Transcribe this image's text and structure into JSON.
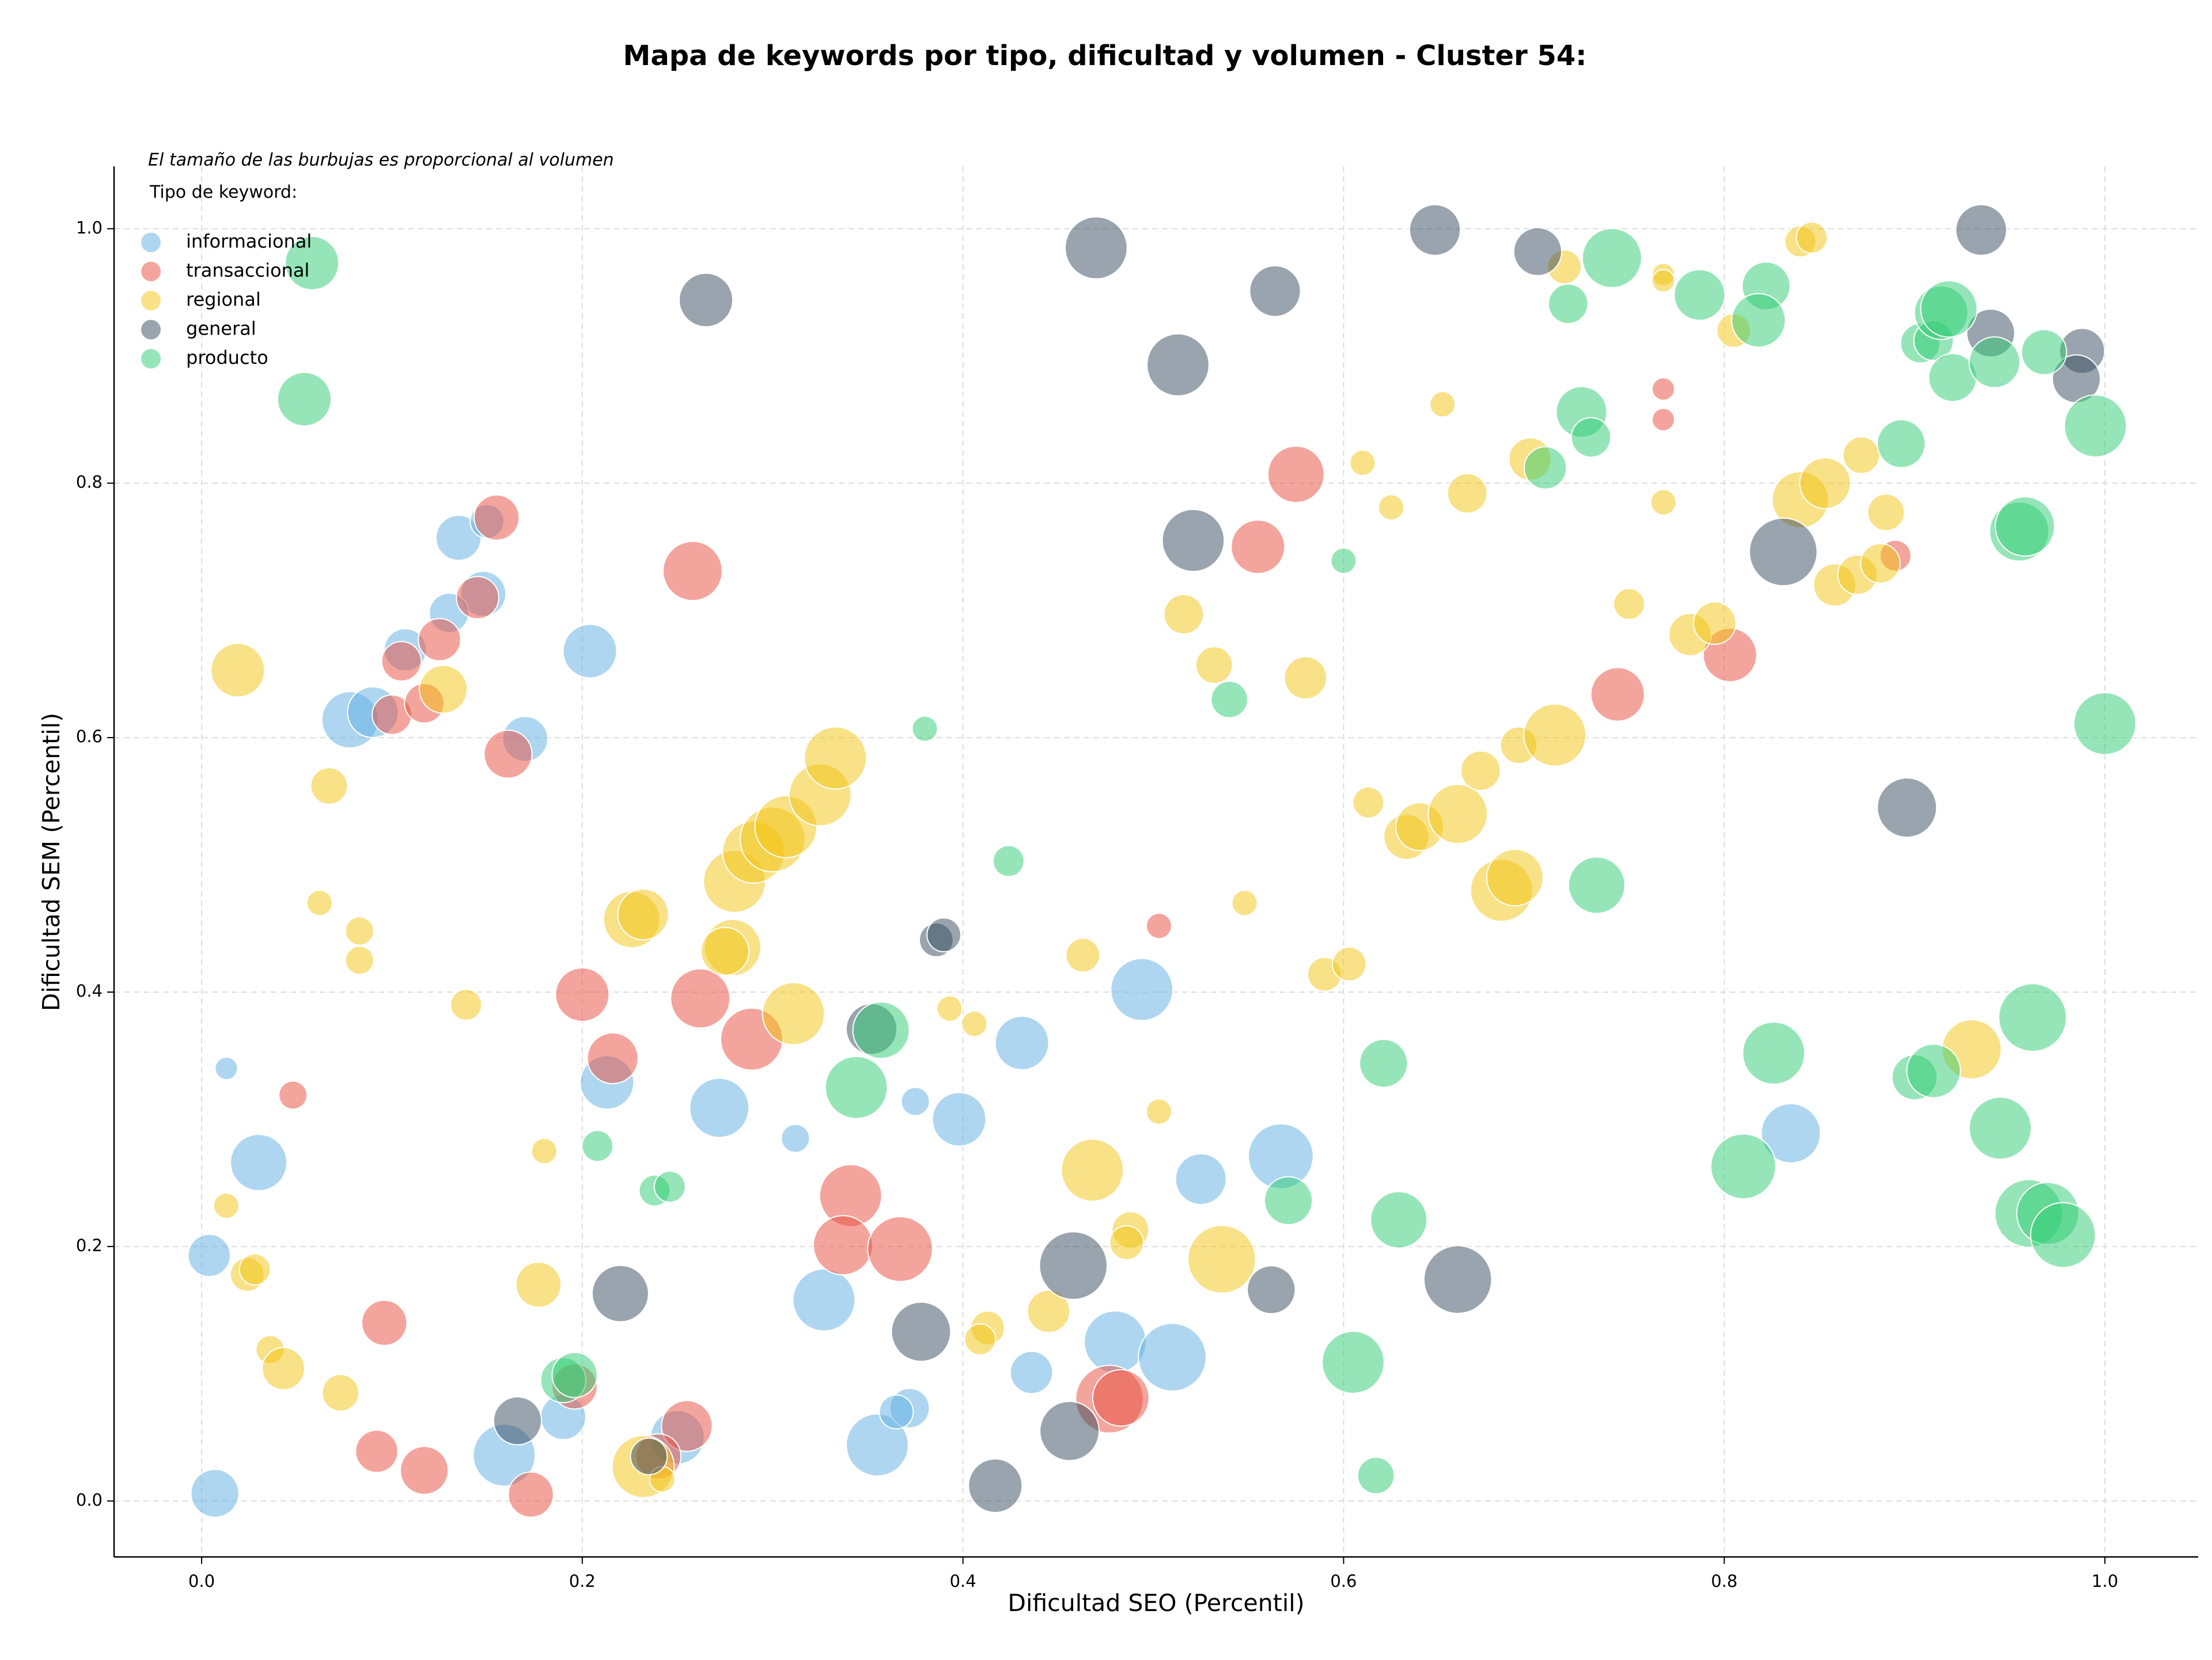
{
  "chart_data": {
    "type": "scatter",
    "title": "Mapa de keywords por tipo, dificultad y volumen - Cluster 54:",
    "annotation": "El tamaño de las burbujas es proporcional al volumen",
    "legend_title": "Tipo de keyword:",
    "legend_position": "upper left",
    "xlabel": "Dificultad SEO (Percentil)",
    "ylabel": "Dificultad SEM (Percentil)",
    "xlim": [
      -0.046,
      1.049
    ],
    "ylim": [
      -0.044,
      1.049
    ],
    "xticks": [
      {
        "value": 0,
        "label": "0.0"
      },
      0.2,
      0.4,
      0.6,
      0.8,
      {
        "value": 1,
        "label": "1.0"
      }
    ],
    "yticks": [
      {
        "value": 0,
        "label": "0.0"
      },
      0.2,
      0.4,
      0.6,
      0.8,
      {
        "value": 1,
        "label": "1.0"
      }
    ],
    "grid": true,
    "series": [
      {
        "name": "informacional",
        "color": "#5DADE2",
        "x": [
          0.013,
          0.03,
          0.004,
          0.007,
          0.078,
          0.09,
          0.107,
          0.135,
          0.148,
          0.13,
          0.17,
          0.204,
          0.213,
          0.272,
          0.159,
          0.19,
          0.25,
          0.327,
          0.312,
          0.375,
          0.398,
          0.431,
          0.436,
          0.355,
          0.372,
          0.365,
          0.494,
          0.48,
          0.51,
          0.525,
          0.567,
          0.835,
          0.15
        ],
        "y": [
          0.34,
          0.266,
          0.193,
          0.006,
          0.614,
          0.62,
          0.669,
          0.757,
          0.713,
          0.698,
          0.599,
          0.668,
          0.329,
          0.309,
          0.036,
          0.066,
          0.05,
          0.158,
          0.285,
          0.314,
          0.3,
          0.36,
          0.101,
          0.044,
          0.073,
          0.07,
          0.402,
          0.125,
          0.113,
          0.253,
          0.271,
          0.289,
          0.77
        ],
        "sizes": [
          64,
          400,
          225,
          289,
          400,
          324,
          225,
          256,
          256,
          196,
          256,
          361,
          361,
          441,
          484,
          256,
          361,
          484,
          100,
          100,
          361,
          361,
          225,
          484,
          196,
          144,
          484,
          484,
          576,
          324,
          529,
          441,
          144
        ]
      },
      {
        "name": "transaccional",
        "color": "#E74C3C",
        "x": [
          0.048,
          0.096,
          0.092,
          0.117,
          0.173,
          0.196,
          0.2,
          0.216,
          0.161,
          0.155,
          0.145,
          0.125,
          0.105,
          0.1,
          0.117,
          0.258,
          0.262,
          0.289,
          0.341,
          0.337,
          0.367,
          0.255,
          0.24,
          0.477,
          0.483,
          0.503,
          0.555,
          0.575,
          0.744,
          0.803,
          0.768,
          0.768,
          0.89
        ],
        "y": [
          0.319,
          0.14,
          0.039,
          0.024,
          0.005,
          0.09,
          0.398,
          0.348,
          0.587,
          0.773,
          0.71,
          0.677,
          0.66,
          0.618,
          0.627,
          0.731,
          0.395,
          0.363,
          0.24,
          0.201,
          0.198,
          0.059,
          0.035,
          0.08,
          0.081,
          0.452,
          0.75,
          0.807,
          0.634,
          0.665,
          0.874,
          0.85,
          0.743
        ],
        "sizes": [
          100,
          256,
          225,
          289,
          256,
          256,
          361,
          324,
          289,
          256,
          225,
          225,
          196,
          196,
          196,
          441,
          441,
          484,
          484,
          441,
          529,
          324,
          256,
          576,
          400,
          81,
          361,
          400,
          361,
          361,
          64,
          64,
          121
        ]
      },
      {
        "name": "regional",
        "color": "#F1C40F",
        "x": [
          0.019,
          0.067,
          0.062,
          0.083,
          0.083,
          0.013,
          0.024,
          0.028,
          0.036,
          0.043,
          0.073,
          0.139,
          0.18,
          0.177,
          0.127,
          0.226,
          0.232,
          0.279,
          0.275,
          0.28,
          0.29,
          0.3,
          0.307,
          0.325,
          0.333,
          0.311,
          0.232,
          0.242,
          0.393,
          0.406,
          0.413,
          0.409,
          0.445,
          0.463,
          0.468,
          0.488,
          0.486,
          0.503,
          0.536,
          0.516,
          0.532,
          0.58,
          0.548,
          0.59,
          0.603,
          0.61,
          0.625,
          0.652,
          0.613,
          0.633,
          0.64,
          0.66,
          0.672,
          0.683,
          0.69,
          0.692,
          0.711,
          0.698,
          0.665,
          0.716,
          0.75,
          0.768,
          0.768,
          0.768,
          0.782,
          0.795,
          0.805,
          0.84,
          0.846,
          0.84,
          0.853,
          0.858,
          0.87,
          0.872,
          0.882,
          0.885,
          0.93
        ],
        "y": [
          0.653,
          0.562,
          0.47,
          0.448,
          0.425,
          0.232,
          0.178,
          0.182,
          0.119,
          0.104,
          0.085,
          0.39,
          0.275,
          0.17,
          0.638,
          0.457,
          0.461,
          0.435,
          0.432,
          0.487,
          0.51,
          0.52,
          0.53,
          0.555,
          0.584,
          0.383,
          0.027,
          0.017,
          0.387,
          0.375,
          0.136,
          0.127,
          0.149,
          0.429,
          0.26,
          0.213,
          0.203,
          0.306,
          0.19,
          0.697,
          0.657,
          0.647,
          0.47,
          0.414,
          0.422,
          0.816,
          0.781,
          0.862,
          0.549,
          0.522,
          0.53,
          0.54,
          0.574,
          0.48,
          0.49,
          0.594,
          0.602,
          0.819,
          0.792,
          0.97,
          0.705,
          0.964,
          0.959,
          0.785,
          0.681,
          0.69,
          0.92,
          0.99,
          0.993,
          0.787,
          0.8,
          0.72,
          0.728,
          0.822,
          0.737,
          0.777,
          0.355
        ],
        "sizes": [
          361,
          169,
          81,
          100,
          100,
          81,
          144,
          121,
          100,
          225,
          169,
          121,
          81,
          256,
          289,
          400,
          324,
          400,
          289,
          484,
          484,
          529,
          484,
          484,
          484,
          484,
          484,
          81,
          81,
          81,
          144,
          121,
          225,
          144,
          484,
          169,
          144,
          81,
          576,
          196,
          169,
          225,
          81,
          144,
          144,
          81,
          81,
          81,
          121,
          256,
          289,
          441,
          196,
          484,
          400,
          169,
          484,
          225,
          196,
          144,
          121,
          64,
          64,
          81,
          225,
          225,
          144,
          121,
          121,
          400,
          324,
          225,
          196,
          169,
          196,
          169,
          441
        ]
      },
      {
        "name": "general",
        "color": "#34495E",
        "x": [
          0.265,
          0.47,
          0.513,
          0.564,
          0.648,
          0.702,
          0.521,
          0.831,
          0.935,
          0.94,
          0.988,
          0.985,
          0.896,
          0.22,
          0.166,
          0.235,
          0.352,
          0.386,
          0.39,
          0.378,
          0.458,
          0.456,
          0.417,
          0.562,
          0.66
        ],
        "y": [
          0.944,
          0.985,
          0.893,
          0.951,
          0.999,
          0.982,
          0.755,
          0.746,
          0.999,
          0.918,
          0.904,
          0.882,
          0.545,
          0.163,
          0.063,
          0.035,
          0.371,
          0.441,
          0.445,
          0.133,
          0.185,
          0.055,
          0.012,
          0.166,
          0.174
        ],
        "sizes": [
          361,
          484,
          484,
          324,
          324,
          289,
          484,
          576,
          324,
          289,
          256,
          289,
          441,
          400,
          289,
          169,
          324,
          144,
          144,
          441,
          576,
          441,
          361,
          289,
          576
        ]
      },
      {
        "name": "producto",
        "color": "#2ECC71",
        "x": [
          0.058,
          0.054,
          0.208,
          0.238,
          0.246,
          0.19,
          0.196,
          0.344,
          0.357,
          0.38,
          0.424,
          0.6,
          0.54,
          0.571,
          0.605,
          0.617,
          0.621,
          0.629,
          0.706,
          0.718,
          0.725,
          0.73,
          0.733,
          0.741,
          0.787,
          0.822,
          0.818,
          0.81,
          0.826,
          0.893,
          0.903,
          0.91,
          0.914,
          0.918,
          0.92,
          0.942,
          0.945,
          0.955,
          0.958,
          0.962,
          0.968,
          0.96,
          0.97,
          0.978,
          0.995,
          1.0,
          0.9,
          0.91
        ],
        "y": [
          0.973,
          0.866,
          0.279,
          0.244,
          0.247,
          0.095,
          0.099,
          0.325,
          0.37,
          0.607,
          0.503,
          0.739,
          0.63,
          0.236,
          0.109,
          0.02,
          0.344,
          0.221,
          0.812,
          0.941,
          0.856,
          0.836,
          0.484,
          0.977,
          0.948,
          0.955,
          0.928,
          0.263,
          0.352,
          0.831,
          0.91,
          0.912,
          0.934,
          0.937,
          0.883,
          0.895,
          0.293,
          0.762,
          0.766,
          0.38,
          0.903,
          0.226,
          0.226,
          0.209,
          0.845,
          0.611,
          0.333,
          0.338
        ],
        "sizes": [
          361,
          361,
          121,
          121,
          121,
          256,
          256,
          484,
          400,
          81,
          121,
          81,
          169,
          289,
          484,
          169,
          289,
          400,
          225,
          196,
          324,
          196,
          400,
          441,
          324,
          289,
          361,
          529,
          484,
          289,
          196,
          196,
          361,
          400,
          289,
          324,
          484,
          441,
          441,
          576,
          256,
          576,
          484,
          529,
          484,
          484,
          256,
          361
        ]
      }
    ]
  }
}
